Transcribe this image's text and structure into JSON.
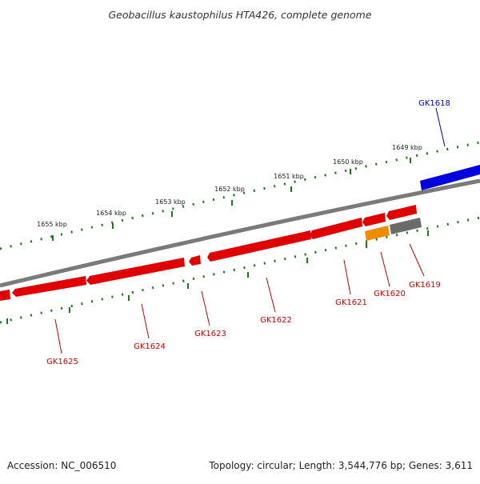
{
  "title": "Geobacillus kaustophilus HTA426, complete genome",
  "footer": {
    "accession": "Accession: NC_006510",
    "summary": "Topology: circular; Length: 3,544,776 bp; Genes: 3,611"
  },
  "colors": {
    "backbone": "#7a7a7a",
    "ticks": "#1a7a1a",
    "gene_red": "#e00000",
    "gene_blue": "#0000e0",
    "gene_orange": "#ef8c00",
    "gene_gray": "#6a6a6a",
    "label_red": "#cc0000",
    "label_blue": "#0000cc"
  },
  "ticks": [
    "1649 kbp",
    "1650 kbp",
    "1651 kbp",
    "1652 kbp",
    "1653 kbp",
    "1654 kbp",
    "1655 kbp"
  ],
  "genes": [
    {
      "name": "GK1618",
      "color": "blue"
    },
    {
      "name": "GK1619",
      "color": "gray"
    },
    {
      "name": "GK1620",
      "color": "orange"
    },
    {
      "name": "GK1621",
      "color": "red"
    },
    {
      "name": "GK1622",
      "color": "red"
    },
    {
      "name": "GK1623",
      "color": "red"
    },
    {
      "name": "GK1624",
      "color": "red"
    },
    {
      "name": "GK1625",
      "color": "red"
    }
  ]
}
